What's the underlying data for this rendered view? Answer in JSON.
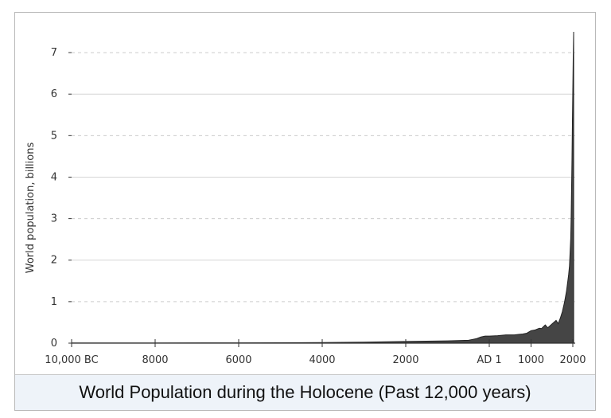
{
  "caption": "World Population during the Holocene (Past 12,000 years)",
  "colors": {
    "area": "#454545",
    "grid_dashed": "#cccccc",
    "grid_solid": "#d6d6d6",
    "axis": "#333333",
    "caption_bg": "#eef3f9"
  },
  "chart_data": {
    "type": "area",
    "title": "",
    "xlabel": "",
    "ylabel": "World population, billions",
    "xlim": [
      -10000,
      2000
    ],
    "ylim": [
      0,
      7.5
    ],
    "x_ticks": [
      -10000,
      -8000,
      -6000,
      -4000,
      -2000,
      0,
      1000,
      2000
    ],
    "x_tick_labels": [
      "10,000 BC",
      "8000",
      "6000",
      "4000",
      "2000",
      "AD 1",
      "1000",
      "2000"
    ],
    "y_ticks": [
      0,
      1,
      2,
      3,
      4,
      5,
      6,
      7
    ],
    "y_tick_labels": [
      "0",
      "1",
      "2",
      "3",
      "4",
      "5",
      "6",
      "7"
    ],
    "grid": "horizontal; dashed at odd values, solid at even values",
    "series": [
      {
        "x": [
          -10000,
          -8000,
          -6000,
          -5000,
          -4000,
          -3000,
          -2000,
          -1000,
          -500,
          -400,
          -300,
          -200,
          -100,
          1,
          200,
          400,
          500,
          600,
          700,
          800,
          900,
          1000,
          1100,
          1200,
          1250,
          1300,
          1340,
          1400,
          1500,
          1600,
          1650,
          1700,
          1750,
          1800,
          1850,
          1900,
          1920,
          1940,
          1950,
          1960,
          1970,
          1980,
          1990,
          2000,
          2010,
          2020
        ],
        "y": [
          0.004,
          0.005,
          0.007,
          0.01,
          0.015,
          0.025,
          0.04,
          0.055,
          0.07,
          0.09,
          0.11,
          0.15,
          0.17,
          0.17,
          0.18,
          0.2,
          0.2,
          0.2,
          0.21,
          0.22,
          0.24,
          0.3,
          0.32,
          0.36,
          0.35,
          0.4,
          0.44,
          0.37,
          0.46,
          0.55,
          0.47,
          0.6,
          0.76,
          0.98,
          1.26,
          1.65,
          1.86,
          2.3,
          2.52,
          3.0,
          3.7,
          4.4,
          5.3,
          6.1,
          6.9,
          7.5
        ]
      }
    ]
  }
}
